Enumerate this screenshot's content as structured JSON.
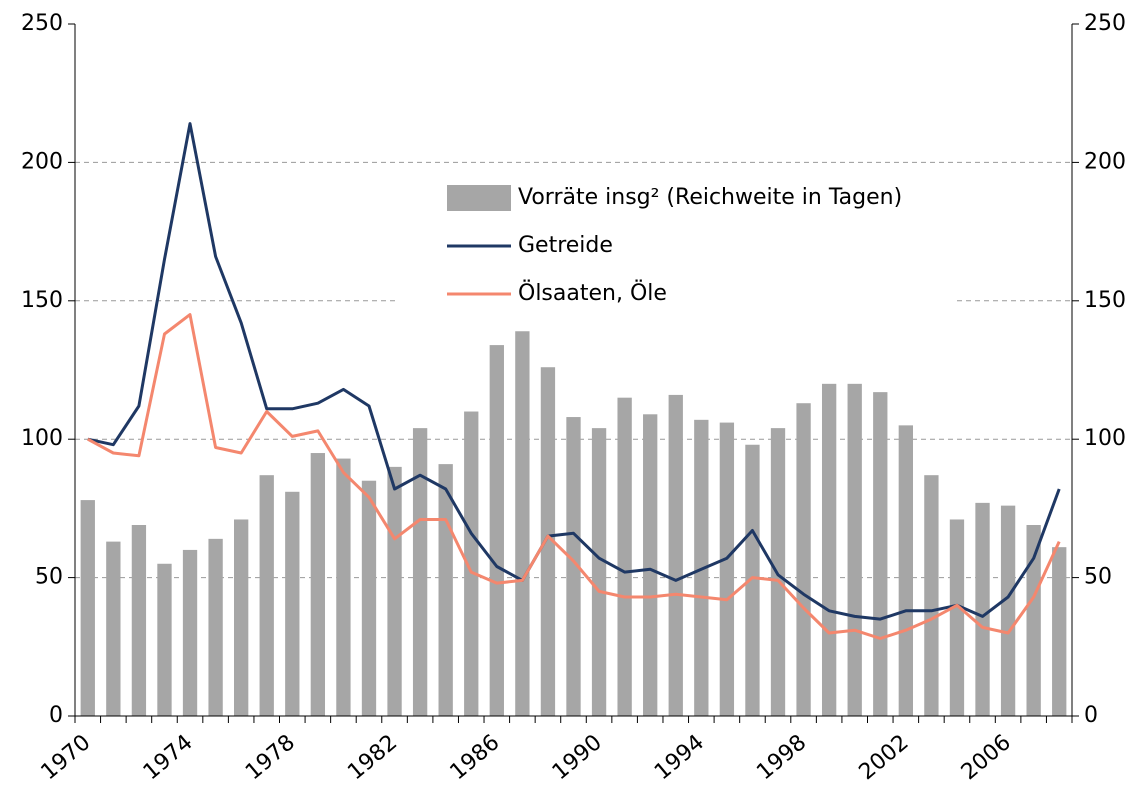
{
  "chart_data": {
    "type": "bar_line",
    "categories": [
      "1970",
      null,
      null,
      null,
      "1974",
      null,
      null,
      null,
      "1978",
      null,
      null,
      null,
      "1982",
      null,
      null,
      null,
      "1986",
      null,
      null,
      null,
      "1990",
      null,
      null,
      null,
      "1994",
      null,
      null,
      null,
      "1998",
      null,
      null,
      null,
      "2002",
      null,
      null,
      null,
      "2006",
      null,
      null
    ],
    "series": [
      {
        "name": "Vorräte insg² (Reichweite in Tagen)",
        "type": "bar",
        "color": "#a6a6a6",
        "values": [
          78,
          63,
          69,
          55,
          60,
          64,
          71,
          87,
          81,
          95,
          93,
          85,
          90,
          104,
          91,
          110,
          134,
          139,
          126,
          108,
          104,
          115,
          109,
          116,
          107,
          106,
          98,
          104,
          113,
          120,
          120,
          117,
          105,
          87,
          71,
          77,
          76,
          69,
          61
        ]
      },
      {
        "name": "Getreide",
        "type": "line",
        "color": "#1f3864",
        "values": [
          100,
          98,
          112,
          165,
          214,
          166,
          142,
          111,
          111,
          113,
          118,
          112,
          82,
          87,
          82,
          66,
          54,
          49,
          65,
          66,
          57,
          52,
          53,
          49,
          53,
          57,
          67,
          51,
          44,
          38,
          36,
          35,
          38,
          38,
          40,
          36,
          43,
          57,
          82
        ]
      },
      {
        "name": "Ölsaaten, Öle",
        "type": "line",
        "color": "#f4876e",
        "values": [
          100,
          95,
          94,
          138,
          145,
          97,
          95,
          110,
          101,
          103,
          88,
          79,
          64,
          71,
          71,
          52,
          48,
          49,
          65,
          56,
          45,
          43,
          43,
          44,
          43,
          42,
          50,
          49,
          39,
          30,
          31,
          28,
          31,
          35,
          40,
          32,
          30,
          43,
          63
        ]
      }
    ],
    "ylim": [
      0,
      250
    ],
    "yticks": [
      0,
      50,
      100,
      150,
      200,
      250
    ],
    "y2lim": [
      0,
      250
    ],
    "y2ticks": [
      0,
      50,
      100,
      150,
      200,
      250
    ],
    "grid": true
  }
}
